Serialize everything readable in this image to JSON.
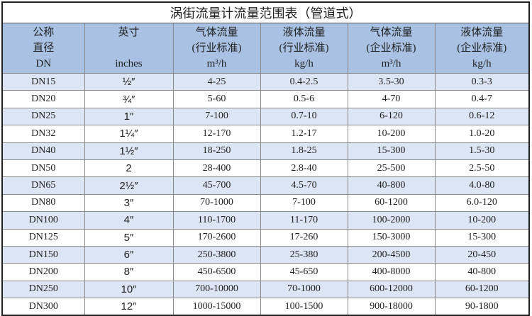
{
  "title": "涡街流量计流量范围表（管道式）",
  "headers": [
    {
      "l1": "公称",
      "l2": "直径",
      "l3": "DN"
    },
    {
      "l1": "英寸",
      "l2": "",
      "l3": "inches"
    },
    {
      "l1": "气体流量",
      "l2": "(行业标准)",
      "l3": "m³/h"
    },
    {
      "l1": "液体流量",
      "l2": "(行业标准)",
      "l3": "kg/h"
    },
    {
      "l1": "气体流量",
      "l2": "(企业标准)",
      "l3": "m³/h"
    },
    {
      "l1": "液体流量",
      "l2": "(企业标准)",
      "l3": "kg/h"
    }
  ],
  "rows": [
    [
      "DN15",
      "½″",
      "4-25",
      "0.4-2.5",
      "3.5-30",
      "0.3-3"
    ],
    [
      "DN20",
      "¾″",
      "5-60",
      "0.5-6",
      "4-70",
      "0.4-7"
    ],
    [
      "DN25",
      "1″",
      "7-100",
      "0.7-10",
      "6-120",
      "0.6-12"
    ],
    [
      "DN32",
      "1¼″",
      "12-170",
      "1.2-17",
      "10-200",
      "1.0-20"
    ],
    [
      "DN40",
      "1½″",
      "18-250",
      "1.8-25",
      "15-300",
      "1.5-30"
    ],
    [
      "DN50",
      "2",
      "28-400",
      "2.8-40",
      "25-500",
      "2.5-50"
    ],
    [
      "DN65",
      "2½″",
      "45-700",
      "4.5-70",
      "40-800",
      "4.0-80"
    ],
    [
      "DN80",
      "3″",
      "70-1000",
      "7-100",
      "60-1200",
      "6.0-120"
    ],
    [
      "DN100",
      "4″",
      "110-1700",
      "11-170",
      "100-2000",
      "10-200"
    ],
    [
      "DN125",
      "5″",
      "170-2600",
      "17-260",
      "150-3000",
      "15-300"
    ],
    [
      "DN150",
      "6″",
      "250-3800",
      "25-380",
      "200-4500",
      "20-450"
    ],
    [
      "DN200",
      "8″",
      "450-6500",
      "45-650",
      "400-8000",
      "40-800"
    ],
    [
      "DN250",
      "10″",
      "700-10000",
      "70-1000",
      "600-12000",
      "60-1200"
    ],
    [
      "DN300",
      "12″",
      "1000-15000",
      "100-1500",
      "900-18000",
      "90-1800"
    ]
  ]
}
